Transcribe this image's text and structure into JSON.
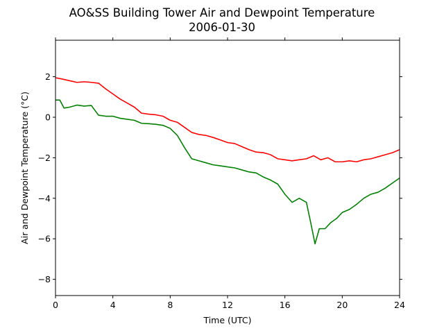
{
  "chart_data": {
    "type": "line",
    "title": "AO&SS Building Tower Air and Dewpoint Temperature",
    "subtitle": "2006-01-30",
    "xlabel": "Time (UTC)",
    "ylabel": "Air and Dewpoint Temperature (°C)",
    "xlim": [
      0,
      24
    ],
    "ylim": [
      -8.8,
      3.8
    ],
    "xticks": [
      0,
      4,
      8,
      12,
      16,
      20,
      24
    ],
    "yticks": [
      -8,
      -6,
      -4,
      -2,
      0,
      2
    ],
    "grid": false,
    "series": [
      {
        "color": "#ff0000",
        "x": [
          0,
          0.5,
          1,
          1.5,
          2,
          2.5,
          3,
          3.5,
          4,
          4.5,
          5,
          5.5,
          6,
          6.5,
          7,
          7.5,
          8,
          8.5,
          9,
          9.5,
          10,
          10.5,
          11,
          11.5,
          12,
          12.5,
          13,
          13.5,
          14,
          14.5,
          15,
          15.5,
          16,
          16.5,
          17,
          17.5,
          18,
          18.5,
          19,
          19.5,
          20,
          20.5,
          21,
          21.5,
          22,
          22.5,
          23,
          23.5,
          24
        ],
        "y": [
          1.95,
          1.88,
          1.8,
          1.72,
          1.75,
          1.72,
          1.68,
          1.4,
          1.15,
          0.9,
          0.7,
          0.5,
          0.2,
          0.15,
          0.12,
          0.05,
          -0.15,
          -0.25,
          -0.5,
          -0.75,
          -0.85,
          -0.9,
          -1.0,
          -1.12,
          -1.25,
          -1.3,
          -1.45,
          -1.6,
          -1.72,
          -1.75,
          -1.85,
          -2.05,
          -2.1,
          -2.15,
          -2.1,
          -2.05,
          -1.9,
          -2.1,
          -2.0,
          -2.2,
          -2.2,
          -2.15,
          -2.2,
          -2.1,
          -2.05,
          -1.95,
          -1.85,
          -1.75,
          -1.6
        ]
      },
      {
        "color": "#008000",
        "x": [
          0,
          0.3,
          0.6,
          1,
          1.5,
          2,
          2.5,
          3,
          3.5,
          4,
          4.5,
          5,
          5.5,
          6,
          6.5,
          7,
          7.5,
          8,
          8.5,
          9,
          9.5,
          10,
          10.5,
          11,
          11.5,
          12,
          12.5,
          13,
          13.5,
          14,
          14.5,
          15,
          15.5,
          16,
          16.5,
          17,
          17.5,
          17.8,
          18.1,
          18.4,
          18.8,
          19.2,
          19.6,
          20,
          20.5,
          21,
          21.5,
          22,
          22.5,
          23,
          23.5,
          24
        ],
        "y": [
          0.85,
          0.85,
          0.45,
          0.5,
          0.6,
          0.55,
          0.58,
          0.1,
          0.05,
          0.05,
          -0.05,
          -0.1,
          -0.15,
          -0.3,
          -0.32,
          -0.35,
          -0.4,
          -0.55,
          -0.9,
          -1.5,
          -2.05,
          -2.15,
          -2.25,
          -2.35,
          -2.4,
          -2.45,
          -2.5,
          -2.6,
          -2.7,
          -2.75,
          -2.95,
          -3.1,
          -3.3,
          -3.8,
          -4.2,
          -4.0,
          -4.2,
          -5.2,
          -6.25,
          -5.5,
          -5.5,
          -5.2,
          -5.0,
          -4.7,
          -4.55,
          -4.3,
          -4.0,
          -3.8,
          -3.7,
          -3.5,
          -3.25,
          -3.0
        ]
      }
    ]
  }
}
